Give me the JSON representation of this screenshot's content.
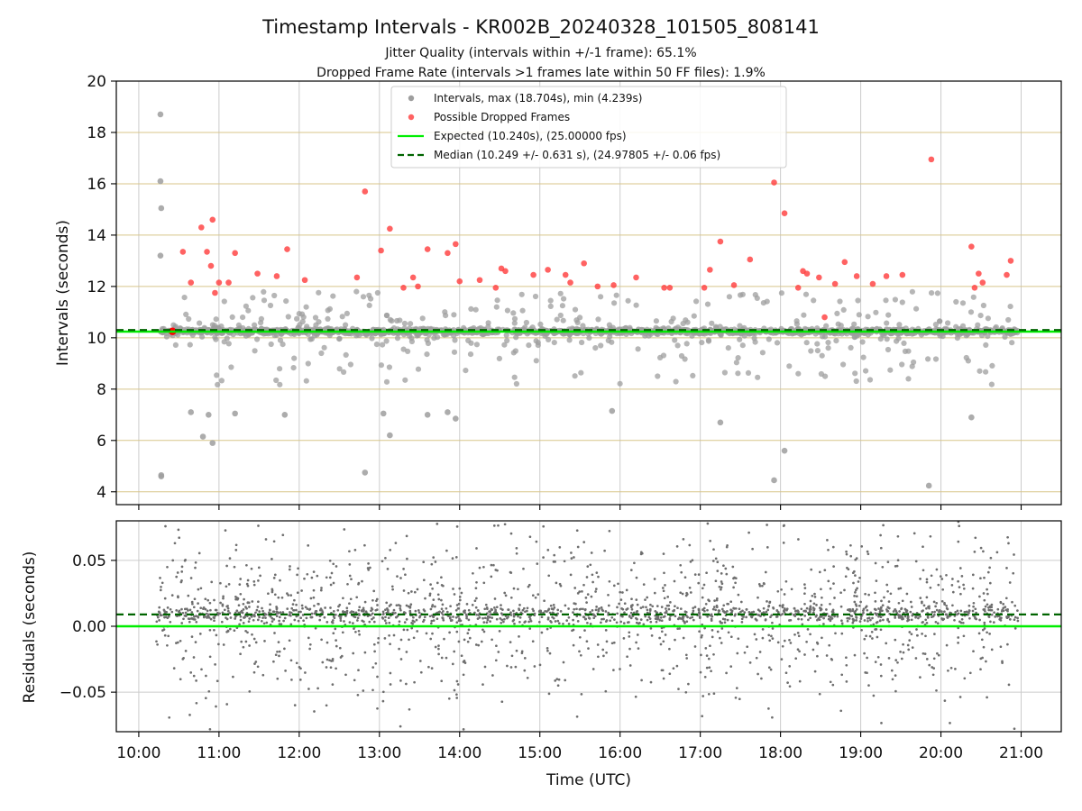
{
  "chart_data": {
    "title": "Timestamp Intervals - KR002B_20240328_101505_808141",
    "subtitle_lines": [
      "Jitter Quality (intervals within +/-1 frame): 65.1%",
      "Dropped Frame Rate (intervals >1 frames late within 50 FF files): 1.9%"
    ],
    "xlabel": "Time (UTC)",
    "x_tick_labels": [
      "10:00",
      "11:00",
      "12:00",
      "13:00",
      "14:00",
      "15:00",
      "16:00",
      "17:00",
      "18:00",
      "19:00",
      "20:00",
      "21:00"
    ],
    "x_ticks_hours": [
      10,
      11,
      12,
      13,
      14,
      15,
      16,
      17,
      18,
      19,
      20,
      21
    ],
    "xlim_hours": [
      9.72,
      21.5
    ],
    "grid": true,
    "colors": {
      "intervals": "#9e9e9e",
      "dropped": "#ff3b3b",
      "expected": "#00ee00",
      "median": "#006400",
      "hgrid_top": "#d8c58a",
      "grid": "#cccccc",
      "residuals": "#6e6e6e"
    },
    "panels": [
      {
        "type": "scatter",
        "ylabel": "Intervals (seconds)",
        "ylim": [
          3.5,
          20
        ],
        "y_ticks": [
          4,
          6,
          8,
          10,
          12,
          14,
          16,
          18,
          20
        ],
        "y_tick_labels": [
          "4",
          "6",
          "8",
          "10",
          "12",
          "14",
          "16",
          "18",
          "20"
        ],
        "legend_position": "top-center",
        "legend": [
          "Intervals, max (18.704s), min (4.239s)",
          "Possible Dropped Frames",
          "Expected (10.240s), (25.00000 fps)",
          "Median (10.249 +/- 0.631 s), (24.97805 +/- 0.06 fps)"
        ],
        "expected_line": 10.24,
        "median_line": 10.249,
        "interval_max": 18.704,
        "interval_min": 4.239,
        "outliers": [
          {
            "x": 10.27,
            "y": 18.704
          },
          {
            "x": 10.27,
            "y": 16.1
          },
          {
            "x": 10.28,
            "y": 15.05
          },
          {
            "x": 10.27,
            "y": 13.2
          },
          {
            "x": 10.28,
            "y": 4.6
          },
          {
            "x": 10.28,
            "y": 4.65
          },
          {
            "x": 10.65,
            "y": 7.1
          },
          {
            "x": 10.8,
            "y": 6.15
          },
          {
            "x": 10.87,
            "y": 7.0
          },
          {
            "x": 10.92,
            "y": 5.9
          },
          {
            "x": 11.2,
            "y": 7.05
          },
          {
            "x": 11.82,
            "y": 7.0
          },
          {
            "x": 12.82,
            "y": 4.75
          },
          {
            "x": 13.05,
            "y": 7.05
          },
          {
            "x": 13.13,
            "y": 6.2
          },
          {
            "x": 13.6,
            "y": 7.0
          },
          {
            "x": 13.85,
            "y": 7.1
          },
          {
            "x": 13.95,
            "y": 6.85
          },
          {
            "x": 15.9,
            "y": 7.15
          },
          {
            "x": 17.25,
            "y": 6.7
          },
          {
            "x": 17.92,
            "y": 4.45
          },
          {
            "x": 18.05,
            "y": 5.6
          },
          {
            "x": 19.85,
            "y": 4.239
          },
          {
            "x": 20.38,
            "y": 6.9
          }
        ],
        "dropped_frames": [
          {
            "x": 10.42,
            "y": 10.25
          },
          {
            "x": 10.55,
            "y": 13.35
          },
          {
            "x": 10.65,
            "y": 12.15
          },
          {
            "x": 10.78,
            "y": 14.3
          },
          {
            "x": 10.85,
            "y": 13.35
          },
          {
            "x": 10.9,
            "y": 12.8
          },
          {
            "x": 10.92,
            "y": 14.6
          },
          {
            "x": 10.95,
            "y": 11.75
          },
          {
            "x": 11.0,
            "y": 12.15
          },
          {
            "x": 11.12,
            "y": 12.15
          },
          {
            "x": 11.2,
            "y": 13.3
          },
          {
            "x": 11.48,
            "y": 12.5
          },
          {
            "x": 11.72,
            "y": 12.4
          },
          {
            "x": 11.85,
            "y": 13.45
          },
          {
            "x": 12.07,
            "y": 12.25
          },
          {
            "x": 12.72,
            "y": 12.35
          },
          {
            "x": 12.82,
            "y": 15.7
          },
          {
            "x": 13.02,
            "y": 13.4
          },
          {
            "x": 13.13,
            "y": 14.25
          },
          {
            "x": 13.3,
            "y": 11.95
          },
          {
            "x": 13.42,
            "y": 12.35
          },
          {
            "x": 13.48,
            "y": 12.0
          },
          {
            "x": 13.6,
            "y": 13.45
          },
          {
            "x": 13.85,
            "y": 13.3
          },
          {
            "x": 13.95,
            "y": 13.65
          },
          {
            "x": 14.0,
            "y": 12.2
          },
          {
            "x": 14.25,
            "y": 12.25
          },
          {
            "x": 14.45,
            "y": 11.95
          },
          {
            "x": 14.52,
            "y": 12.7
          },
          {
            "x": 14.57,
            "y": 12.6
          },
          {
            "x": 14.92,
            "y": 12.45
          },
          {
            "x": 15.1,
            "y": 12.65
          },
          {
            "x": 15.32,
            "y": 12.45
          },
          {
            "x": 15.38,
            "y": 12.15
          },
          {
            "x": 15.55,
            "y": 12.9
          },
          {
            "x": 15.72,
            "y": 12.0
          },
          {
            "x": 15.92,
            "y": 12.05
          },
          {
            "x": 16.2,
            "y": 12.35
          },
          {
            "x": 16.55,
            "y": 11.95
          },
          {
            "x": 16.62,
            "y": 11.95
          },
          {
            "x": 17.05,
            "y": 11.95
          },
          {
            "x": 17.12,
            "y": 12.65
          },
          {
            "x": 17.25,
            "y": 13.75
          },
          {
            "x": 17.42,
            "y": 12.05
          },
          {
            "x": 17.62,
            "y": 13.05
          },
          {
            "x": 17.92,
            "y": 16.05
          },
          {
            "x": 18.05,
            "y": 14.85
          },
          {
            "x": 18.22,
            "y": 11.95
          },
          {
            "x": 18.28,
            "y": 12.6
          },
          {
            "x": 18.33,
            "y": 12.5
          },
          {
            "x": 18.48,
            "y": 12.35
          },
          {
            "x": 18.55,
            "y": 10.8
          },
          {
            "x": 18.68,
            "y": 12.1
          },
          {
            "x": 18.8,
            "y": 12.95
          },
          {
            "x": 18.95,
            "y": 12.4
          },
          {
            "x": 19.15,
            "y": 12.1
          },
          {
            "x": 19.32,
            "y": 12.4
          },
          {
            "x": 19.52,
            "y": 12.45
          },
          {
            "x": 19.88,
            "y": 16.95
          },
          {
            "x": 20.38,
            "y": 13.55
          },
          {
            "x": 20.42,
            "y": 11.95
          },
          {
            "x": 20.47,
            "y": 12.5
          },
          {
            "x": 20.52,
            "y": 12.15
          },
          {
            "x": 20.82,
            "y": 12.45
          },
          {
            "x": 20.87,
            "y": 13.0
          }
        ]
      },
      {
        "type": "scatter",
        "ylabel": "Residuals (seconds)",
        "ylim": [
          -0.08,
          0.08
        ],
        "y_ticks": [
          -0.05,
          0.0,
          0.05
        ],
        "y_tick_labels": [
          "−0.05",
          "0.00",
          "0.05"
        ],
        "expected_line": 0.0,
        "median_line": 0.009
      }
    ]
  }
}
